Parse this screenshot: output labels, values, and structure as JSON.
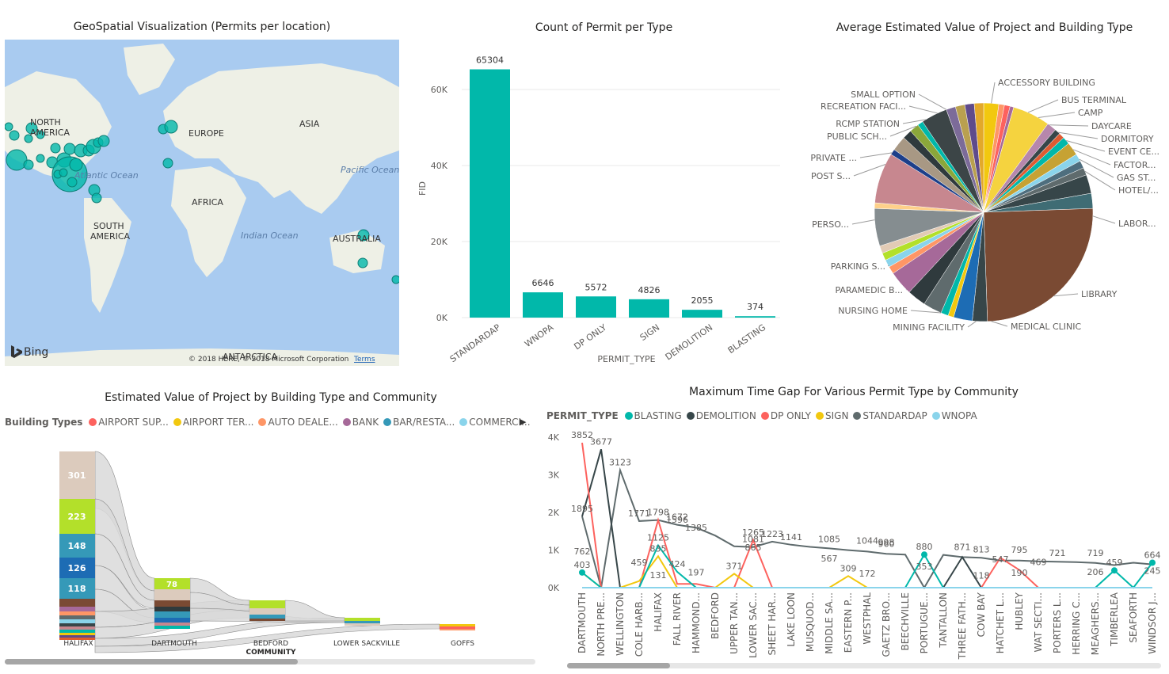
{
  "map": {
    "title": "GeoSpatial Visualization (Permits per location)",
    "labels": {
      "north_america": "NORTH AMERICA",
      "south_america": "SOUTH AMERICA",
      "europe": "EUROPE",
      "asia": "ASIA",
      "africa": "AFRICA",
      "australia": "AUSTRALIA",
      "antarctica": "ANTARCTICA",
      "atlantic": "Atlantic Ocean",
      "pacific": "Pacific Ocean",
      "indian": "Indian Ocean"
    },
    "bing": "Bing",
    "copyright": "© 2018 HERE, © 2018 Microsoft Corporation",
    "terms": "Terms",
    "bubble_color": "#01B8AA"
  },
  "bar": {
    "title": "Count of Permit per Type",
    "chart_data": {
      "type": "bar",
      "categories": [
        "STANDARDAP",
        "WNOPA",
        "DP ONLY",
        "SIGN",
        "DEMOLITION",
        "BLASTING"
      ],
      "values": [
        65304,
        6646,
        5572,
        4826,
        2055,
        374
      ],
      "xlabel": "PERMIT_TYPE",
      "ylabel": "FID",
      "yticks": [
        "0K",
        "20K",
        "40K",
        "60K"
      ],
      "ylim": [
        0,
        70000
      ],
      "color": "#01B8AA"
    }
  },
  "pie": {
    "title": "Average Estimated Value of Project and Building Type",
    "chart_data": {
      "type": "pie",
      "labels": [
        "ACCESSORY BUILDING",
        "BUS TERMINAL",
        "CAMP",
        "DAYCARE",
        "DORMITORY",
        "EVENT CE...",
        "FACTOR...",
        "GAS ST...",
        "HOTEL/...",
        "LABOR...",
        "LIBRARY",
        "MEDICAL CLINIC",
        "MINING FACILITY",
        "NURSING HOME",
        "PARAMEDIC B...",
        "PARKING S...",
        "PERSO...",
        "POST S...",
        "PRIVATE ...",
        "PUBLIC SCH...",
        "RCMP STATION",
        "RECREATION FACI...",
        "SMALL OPTION"
      ]
    }
  },
  "sankey": {
    "title": "Estimated Value of Project by Building Type and Community",
    "legend_title": "Building Types",
    "legend": [
      {
        "name": "AIRPORT SUP...",
        "color": "#FD625E"
      },
      {
        "name": "AIRPORT TER...",
        "color": "#F2C80F"
      },
      {
        "name": "AUTO DEALE...",
        "color": "#FE9666"
      },
      {
        "name": "BANK",
        "color": "#A66999"
      },
      {
        "name": "BAR/RESTA...",
        "color": "#3599B8"
      },
      {
        "name": "COMMERCI...",
        "color": "#8AD4EB"
      }
    ],
    "communities": [
      "HALIFAX",
      "DARTMOUTH",
      "BEDFORD",
      "LOWER SACKVILLE",
      "GOFFS"
    ],
    "axis_label": "COMMUNITY",
    "halifax_values": [
      "301",
      "223",
      "148",
      "126",
      "118"
    ],
    "dartmouth_value": "78"
  },
  "line": {
    "title": "Maximum Time Gap For Various Permit Type by Community",
    "legend_title": "PERMIT_TYPE",
    "chart_data": {
      "type": "line",
      "categories": [
        "DARTMOUTH",
        "NORTH PRE...",
        "WELLINGTON",
        "COLE HARB...",
        "HALIFAX",
        "FALL RIVER",
        "HAMMOND...",
        "BEDFORD",
        "UPPER TAN...",
        "LOWER SAC...",
        "SHEET HAR...",
        "LAKE LOON",
        "MUSQUOD...",
        "MIDDLE SA...",
        "EASTERN P...",
        "WESTPHAL",
        "GAETZ BRO...",
        "BEECHVILLE",
        "PORTUGUE...",
        "TANTALLON",
        "THREE FATH...",
        "COW BAY",
        "HATCHET L...",
        "HUBLEY",
        "WAT SECTI...",
        "PORTERS L...",
        "HERRING C...",
        "MEAGHERS...",
        "TIMBERLEA",
        "SEAFORTH",
        "WINDSOR J..."
      ],
      "yticks": [
        "0K",
        "1K",
        "2K",
        "3K",
        "4K"
      ],
      "ylim": [
        0,
        4000
      ],
      "series": [
        {
          "name": "STANDARDAP",
          "color": "#5F6B6D",
          "values": [
            1895,
            0,
            3123,
            1771,
            1798,
            1672,
            1596,
            1385,
            1100,
            1081,
            1223,
            1141,
            1085,
            1044,
            998,
            960,
            900,
            880,
            0,
            871,
            813,
            795,
            721,
            719,
            700,
            690,
            680,
            659,
            600,
            664,
            620
          ]
        },
        {
          "name": "DEMOLITION",
          "color": "#374649",
          "values": [
            1895,
            3677,
            0,
            0,
            0,
            0,
            0,
            0,
            0,
            0,
            0,
            0,
            0,
            0,
            0,
            0,
            0,
            0,
            0,
            0,
            813,
            0,
            0,
            0,
            0,
            0,
            0,
            0,
            0,
            0,
            0
          ]
        },
        {
          "name": "DP ONLY",
          "color": "#FD625E",
          "values": [
            3852,
            0,
            0,
            0,
            1798,
            100,
            100,
            0,
            0,
            1265,
            0,
            0,
            0,
            0,
            0,
            0,
            0,
            0,
            0,
            0,
            0,
            0,
            795,
            469,
            0,
            0,
            0,
            0,
            0,
            0,
            0
          ]
        },
        {
          "name": "SIGN",
          "color": "#F2C80F",
          "values": [
            403,
            0,
            0,
            175,
            835,
            0,
            0,
            0,
            371,
            0,
            0,
            0,
            0,
            0,
            309,
            0,
            0,
            0,
            0,
            0,
            0,
            0,
            0,
            0,
            0,
            0,
            0,
            0,
            0,
            0,
            0
          ]
        },
        {
          "name": "BLASTING",
          "color": "#01B8AA",
          "values": [
            403,
            0,
            0,
            0,
            1125,
            424,
            0,
            0,
            0,
            0,
            0,
            0,
            0,
            0,
            0,
            0,
            0,
            0,
            880,
            0,
            0,
            0,
            0,
            0,
            0,
            0,
            0,
            0,
            459,
            0,
            664
          ]
        },
        {
          "name": "WNOPA",
          "color": "#8AD4EB",
          "values": [
            0,
            0,
            0,
            0,
            0,
            0,
            0,
            0,
            0,
            0,
            0,
            0,
            0,
            0,
            0,
            0,
            0,
            0,
            0,
            0,
            0,
            0,
            0,
            0,
            0,
            0,
            0,
            0,
            0,
            0,
            0
          ]
        }
      ]
    },
    "labels": [
      "3852",
      "3677",
      "3123",
      "1895",
      "1771",
      "1798",
      "1672",
      "1596",
      "1385",
      "1265",
      "1223",
      "1141",
      "1125",
      "1085",
      "1081",
      "1044",
      "998",
      "960",
      "880",
      "871",
      "865",
      "835",
      "813",
      "795",
      "762",
      "721",
      "719",
      "664",
      "567",
      "547",
      "469",
      "459",
      "459",
      "424",
      "403",
      "371",
      "353",
      "309",
      "245",
      "206",
      "197",
      "190",
      "172",
      "131",
      "118"
    ]
  }
}
